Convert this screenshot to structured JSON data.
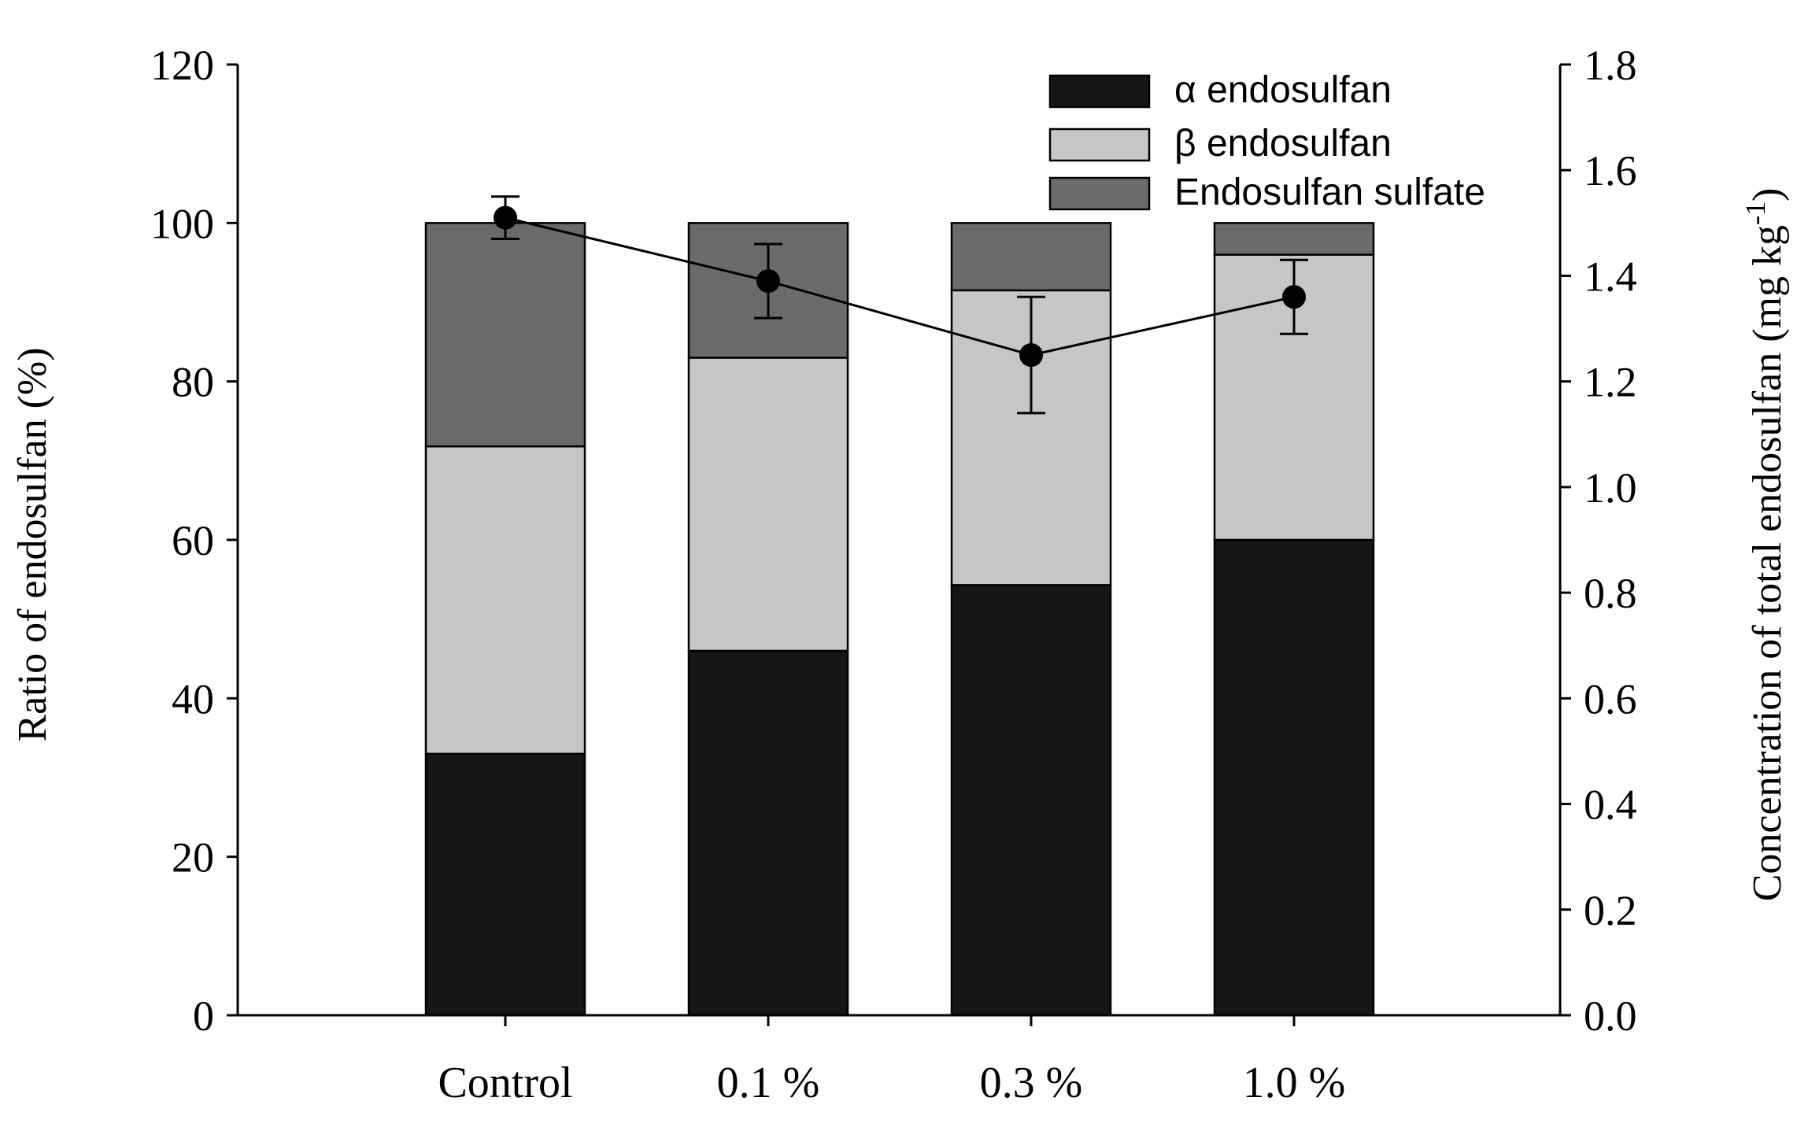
{
  "chart_data": {
    "type": "bar",
    "stacked": true,
    "categories": [
      "Control",
      "0.1 %",
      "0.3 %",
      "1.0 %"
    ],
    "series": [
      {
        "name": "α endosulfan",
        "values": [
          33.0,
          46.0,
          54.3,
          60.0
        ],
        "color": "#161616"
      },
      {
        "name": "β endosulfan",
        "values": [
          38.8,
          37.0,
          37.2,
          36.0
        ],
        "color": "#c6c6c6"
      },
      {
        "name": "Endosulfan sulfate",
        "values": [
          28.2,
          17.0,
          8.5,
          4.0
        ],
        "color": "#6b6b6b"
      }
    ],
    "line_series": {
      "type": "line",
      "axis": "right",
      "values": [
        1.51,
        1.39,
        1.25,
        1.36
      ],
      "error": [
        0.04,
        0.07,
        0.11,
        0.07
      ],
      "color": "#000000"
    },
    "ylabel": "Ratio of endosulfan (%)",
    "ylim": [
      0,
      120
    ],
    "yticks": [
      "0",
      "20",
      "40",
      "60",
      "80",
      "100",
      "120"
    ],
    "y2label_main": "Concentration of total endosulfan (mg kg",
    "y2label_sup": "-1",
    "y2label_end": ")",
    "y2lim": [
      0.0,
      1.8
    ],
    "y2ticks": [
      "0.0",
      "0.2",
      "0.4",
      "0.6",
      "0.8",
      "1.0",
      "1.2",
      "1.4",
      "1.6",
      "1.8"
    ],
    "legend_position": "top-right",
    "grid": false
  }
}
